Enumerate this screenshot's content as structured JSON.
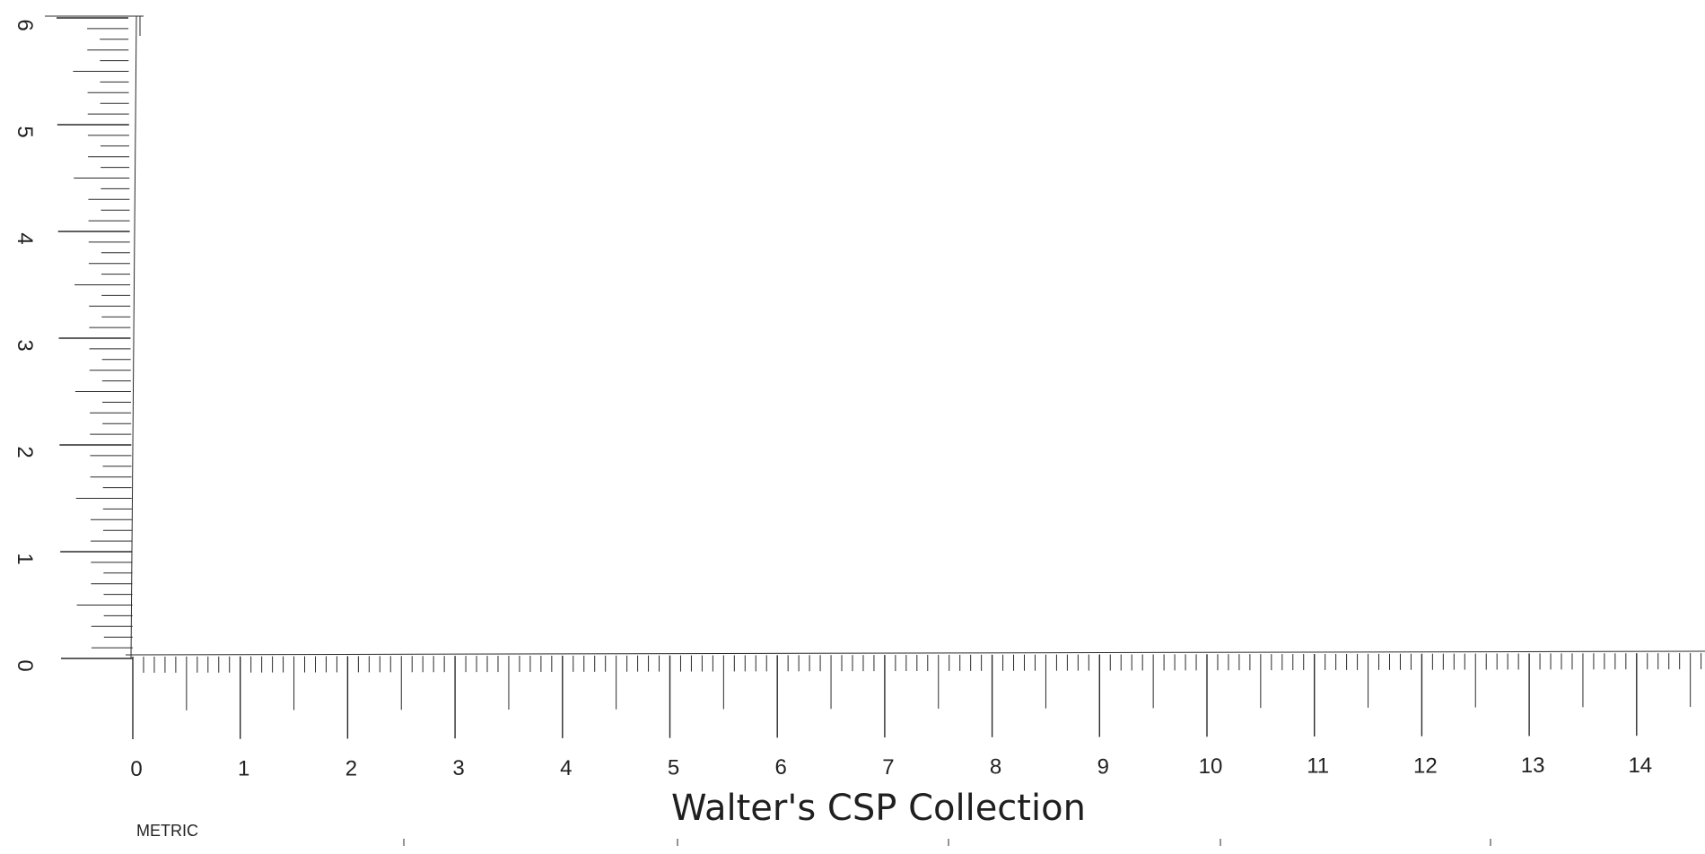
{
  "caption": {
    "title": "Walter's CSP Collection",
    "subtitle": "METRIC"
  },
  "horizontal_ruler": {
    "unit": "cm",
    "labels": [
      "0",
      "1",
      "2",
      "3",
      "4",
      "5",
      "6",
      "7",
      "8",
      "9",
      "10",
      "11",
      "12",
      "13",
      "14"
    ],
    "extent_cm": 14.7,
    "minor_step_mm": 1
  },
  "vertical_ruler": {
    "unit": "cm",
    "labels": [
      "0",
      "1",
      "2",
      "3",
      "4",
      "5",
      "6"
    ],
    "extent_cm": 6.0,
    "minor_step_mm": 1
  },
  "colors": {
    "ink": "#2a2a2a",
    "background": "#ffffff"
  }
}
